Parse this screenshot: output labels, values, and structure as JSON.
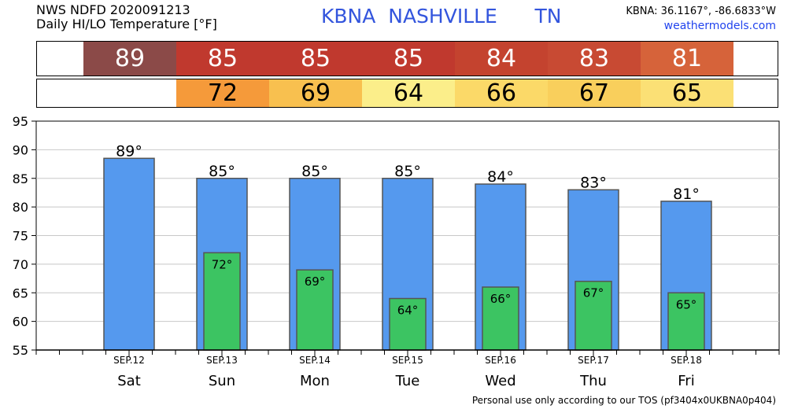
{
  "header": {
    "line1": "NWS NDFD 2020091213",
    "line2": "Daily HI/LO Temperature [°F]",
    "station": "KBNA  NASHVILLE      TN",
    "coords": "KBNA: 36.1167°, -86.6833°W",
    "site": "weathermodels.com"
  },
  "footer": {
    "text": "Personal use only according to our TOS (pf3404x0UKBNA0p404)"
  },
  "hi_strip": [
    {
      "label": "89",
      "color": "#8b4a48"
    },
    {
      "label": "85",
      "color": "#c0392e"
    },
    {
      "label": "85",
      "color": "#c0392e"
    },
    {
      "label": "85",
      "color": "#c0392e"
    },
    {
      "label": "84",
      "color": "#c4432f"
    },
    {
      "label": "83",
      "color": "#c84a33"
    },
    {
      "label": "81",
      "color": "#d6633a"
    }
  ],
  "lo_strip": [
    {
      "label": "",
      "color": "#ffffff"
    },
    {
      "label": "72",
      "color": "#f59a3a"
    },
    {
      "label": "69",
      "color": "#f8c04f"
    },
    {
      "label": "64",
      "color": "#fbee8a"
    },
    {
      "label": "66",
      "color": "#fbd968"
    },
    {
      "label": "67",
      "color": "#f9cf5c"
    },
    {
      "label": "65",
      "color": "#fbe075"
    }
  ],
  "chart_data": {
    "type": "bar",
    "categories": [
      "Sat",
      "Sun",
      "Mon",
      "Tue",
      "Wed",
      "Thu",
      "Fri"
    ],
    "dates": [
      "SEP.12",
      "SEP.13",
      "SEP.14",
      "SEP.15",
      "SEP.16",
      "SEP.17",
      "SEP.18"
    ],
    "series": [
      {
        "values": [
          88.5,
          85,
          85,
          85,
          84,
          83,
          81
        ],
        "labels": [
          "89°",
          "85°",
          "85°",
          "85°",
          "84°",
          "83°",
          "81°"
        ],
        "color": "#5599ee"
      },
      {
        "values": [
          null,
          72,
          69,
          64,
          66,
          67,
          65
        ],
        "labels": [
          "",
          "72°",
          "69°",
          "64°",
          "66°",
          "67°",
          "65°"
        ],
        "color": "#3cc462"
      }
    ],
    "yticks": [
      "55",
      "60",
      "65",
      "70",
      "75",
      "80",
      "85",
      "90",
      "95"
    ],
    "ylim": [
      55,
      95
    ],
    "grid": true
  }
}
